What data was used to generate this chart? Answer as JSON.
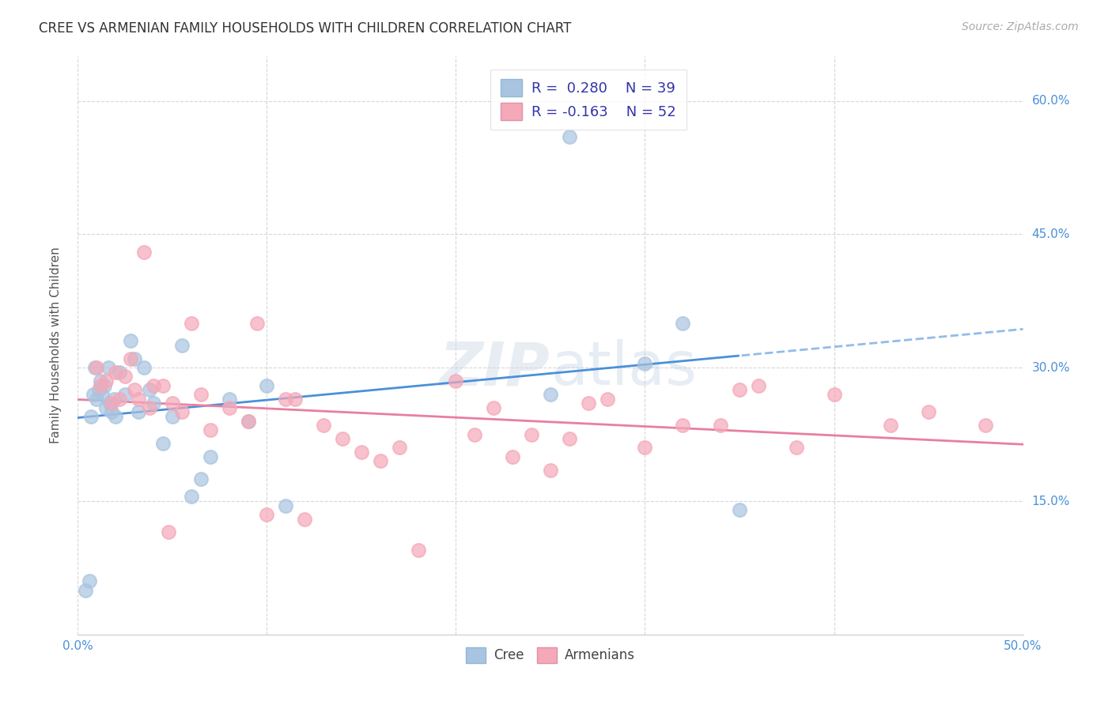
{
  "title": "CREE VS ARMENIAN FAMILY HOUSEHOLDS WITH CHILDREN CORRELATION CHART",
  "source": "Source: ZipAtlas.com",
  "ylabel": "Family Households with Children",
  "xlim": [
    0.0,
    0.5
  ],
  "ylim": [
    0.0,
    0.65
  ],
  "ytick_positions": [
    0.15,
    0.3,
    0.45,
    0.6
  ],
  "ytick_labels": [
    "15.0%",
    "30.0%",
    "45.0%",
    "60.0%"
  ],
  "xtick_positions": [
    0.0,
    0.1,
    0.2,
    0.3,
    0.4,
    0.5
  ],
  "xtick_labels_outside": [
    "0.0%",
    "",
    "",
    "",
    "",
    "50.0%"
  ],
  "background_color": "#ffffff",
  "grid_color": "#cccccc",
  "legend_label_cree": "R =  0.280    N = 39",
  "legend_label_armenians": "R = -0.163    N = 52",
  "cree_color": "#a8c4e0",
  "armenian_color": "#f4a8b8",
  "cree_line_color": "#4a90d9",
  "armenian_line_color": "#e87fa0",
  "watermark_part1": "ZIP",
  "watermark_part2": "atlas",
  "cree_scatter_x": [
    0.004,
    0.006,
    0.007,
    0.008,
    0.009,
    0.01,
    0.011,
    0.012,
    0.013,
    0.014,
    0.015,
    0.016,
    0.017,
    0.018,
    0.019,
    0.02,
    0.022,
    0.025,
    0.028,
    0.03,
    0.032,
    0.035,
    0.038,
    0.04,
    0.045,
    0.05,
    0.055,
    0.06,
    0.065,
    0.07,
    0.08,
    0.09,
    0.1,
    0.11,
    0.25,
    0.26,
    0.3,
    0.32,
    0.35
  ],
  "cree_scatter_y": [
    0.05,
    0.06,
    0.245,
    0.27,
    0.3,
    0.265,
    0.275,
    0.285,
    0.27,
    0.28,
    0.255,
    0.3,
    0.26,
    0.25,
    0.265,
    0.245,
    0.295,
    0.27,
    0.33,
    0.31,
    0.25,
    0.3,
    0.275,
    0.26,
    0.215,
    0.245,
    0.325,
    0.155,
    0.175,
    0.2,
    0.265,
    0.24,
    0.28,
    0.145,
    0.27,
    0.56,
    0.305,
    0.35,
    0.14
  ],
  "armenian_scatter_x": [
    0.01,
    0.012,
    0.015,
    0.018,
    0.02,
    0.022,
    0.025,
    0.028,
    0.03,
    0.032,
    0.035,
    0.038,
    0.04,
    0.045,
    0.048,
    0.05,
    0.055,
    0.06,
    0.065,
    0.07,
    0.08,
    0.09,
    0.095,
    0.1,
    0.11,
    0.115,
    0.12,
    0.13,
    0.14,
    0.15,
    0.16,
    0.17,
    0.18,
    0.2,
    0.21,
    0.22,
    0.23,
    0.24,
    0.25,
    0.26,
    0.27,
    0.28,
    0.3,
    0.32,
    0.34,
    0.35,
    0.36,
    0.38,
    0.4,
    0.43,
    0.45,
    0.48
  ],
  "armenian_scatter_y": [
    0.3,
    0.28,
    0.285,
    0.26,
    0.295,
    0.265,
    0.29,
    0.31,
    0.275,
    0.265,
    0.43,
    0.255,
    0.28,
    0.28,
    0.115,
    0.26,
    0.25,
    0.35,
    0.27,
    0.23,
    0.255,
    0.24,
    0.35,
    0.135,
    0.265,
    0.265,
    0.13,
    0.235,
    0.22,
    0.205,
    0.195,
    0.21,
    0.095,
    0.285,
    0.225,
    0.255,
    0.2,
    0.225,
    0.185,
    0.22,
    0.26,
    0.265,
    0.21,
    0.235,
    0.235,
    0.275,
    0.28,
    0.21,
    0.27,
    0.235,
    0.25,
    0.235
  ]
}
